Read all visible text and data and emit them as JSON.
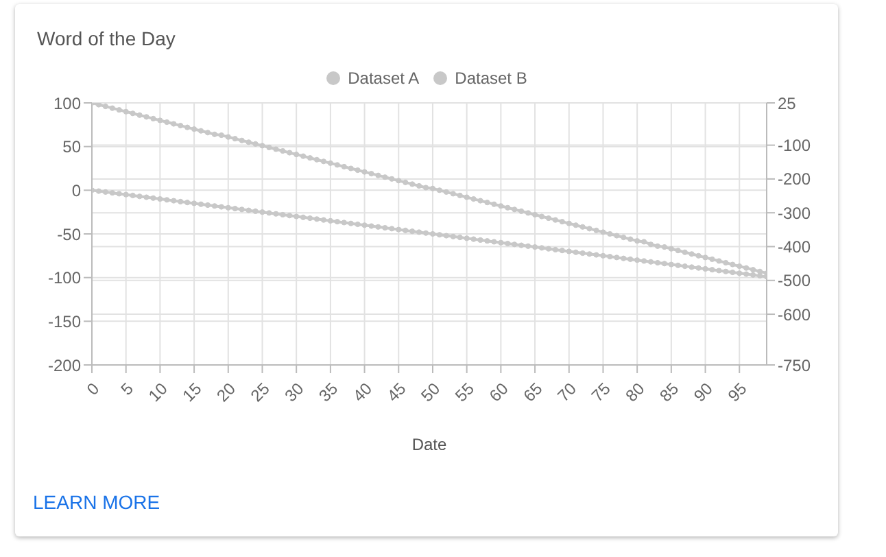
{
  "chart_data": {
    "type": "line",
    "title": "Word of the Day",
    "xlabel": "Date",
    "annotations": [
      "LEARN MORE"
    ],
    "x": [
      0,
      1,
      2,
      3,
      4,
      5,
      6,
      7,
      8,
      9,
      10,
      11,
      12,
      13,
      14,
      15,
      16,
      17,
      18,
      19,
      20,
      21,
      22,
      23,
      24,
      25,
      26,
      27,
      28,
      29,
      30,
      31,
      32,
      33,
      34,
      35,
      36,
      37,
      38,
      39,
      40,
      41,
      42,
      43,
      44,
      45,
      46,
      47,
      48,
      49,
      50,
      51,
      52,
      53,
      54,
      55,
      56,
      57,
      58,
      59,
      60,
      61,
      62,
      63,
      64,
      65,
      66,
      67,
      68,
      69,
      70,
      71,
      72,
      73,
      74,
      75,
      76,
      77,
      78,
      79,
      80,
      81,
      82,
      83,
      84,
      85,
      86,
      87,
      88,
      89,
      90,
      91,
      92,
      93,
      94,
      95,
      96,
      97,
      98,
      99
    ],
    "series": [
      {
        "name": "Dataset A",
        "color": "#c8c8c8",
        "values": [
          100,
          98,
          96,
          94,
          92,
          90,
          88,
          86,
          84,
          82,
          80,
          78,
          76,
          74,
          72,
          70,
          68,
          66,
          64,
          63,
          61,
          59,
          57,
          55,
          53,
          51,
          49,
          47,
          45,
          43,
          41,
          39,
          37,
          35,
          33,
          31,
          29,
          27,
          25,
          23,
          21,
          19,
          17,
          15,
          13,
          11,
          9,
          7,
          5,
          3,
          2,
          0,
          -2,
          -4,
          -6,
          -8,
          -10,
          -12,
          -14,
          -16,
          -18,
          -20,
          -22,
          -24,
          -26,
          -28,
          -30,
          -32,
          -34,
          -36,
          -38,
          -40,
          -42,
          -44,
          -46,
          -48,
          -50,
          -52,
          -54,
          -56,
          -58,
          -59,
          -62,
          -64,
          -65,
          -67,
          -69,
          -71,
          -73,
          -75,
          -77,
          -79,
          -81,
          -83,
          -85,
          -87,
          -89,
          -91,
          -93,
          -95
        ]
      },
      {
        "name": "Dataset B",
        "color": "#c8c8c8",
        "values": [
          0,
          -1,
          -2,
          -3,
          -4,
          -5,
          -6,
          -7,
          -8,
          -9,
          -10,
          -11,
          -12,
          -13,
          -14,
          -15,
          -16,
          -17,
          -18,
          -19,
          -20,
          -21,
          -22,
          -23,
          -24,
          -25,
          -26,
          -27,
          -28,
          -29,
          -30,
          -31,
          -32,
          -33,
          -34,
          -35,
          -36,
          -37,
          -38,
          -39,
          -40,
          -41,
          -42,
          -43,
          -44,
          -45,
          -46,
          -47,
          -48,
          -49,
          -50,
          -51,
          -52,
          -53,
          -54,
          -55,
          -56,
          -57,
          -58,
          -59,
          -60,
          -61,
          -62,
          -63,
          -64,
          -65,
          -66,
          -67,
          -68,
          -69,
          -70,
          -71,
          -72,
          -73,
          -74,
          -75,
          -76,
          -77,
          -78,
          -79,
          -80,
          -81,
          -82,
          -83,
          -84,
          -85,
          -86,
          -87,
          -88,
          -89,
          -90,
          -91,
          -92,
          -93,
          -94,
          -95,
          -96,
          -97,
          -98,
          -99
        ]
      }
    ],
    "xlim": [
      0,
      99
    ],
    "xticks": [
      0,
      5,
      10,
      15,
      20,
      25,
      30,
      35,
      40,
      45,
      50,
      55,
      60,
      65,
      70,
      75,
      80,
      85,
      90,
      95
    ],
    "ylim": [
      -200,
      100
    ],
    "yticks": [
      100,
      50,
      0,
      -50,
      -100,
      -150,
      -200
    ],
    "y2lim": [
      -750,
      25
    ],
    "y2ticks": [
      25,
      -100,
      -200,
      -300,
      -400,
      -500,
      -600,
      -750
    ],
    "grid": true,
    "legend": "top",
    "marker": "circle",
    "line_style": "solid"
  }
}
